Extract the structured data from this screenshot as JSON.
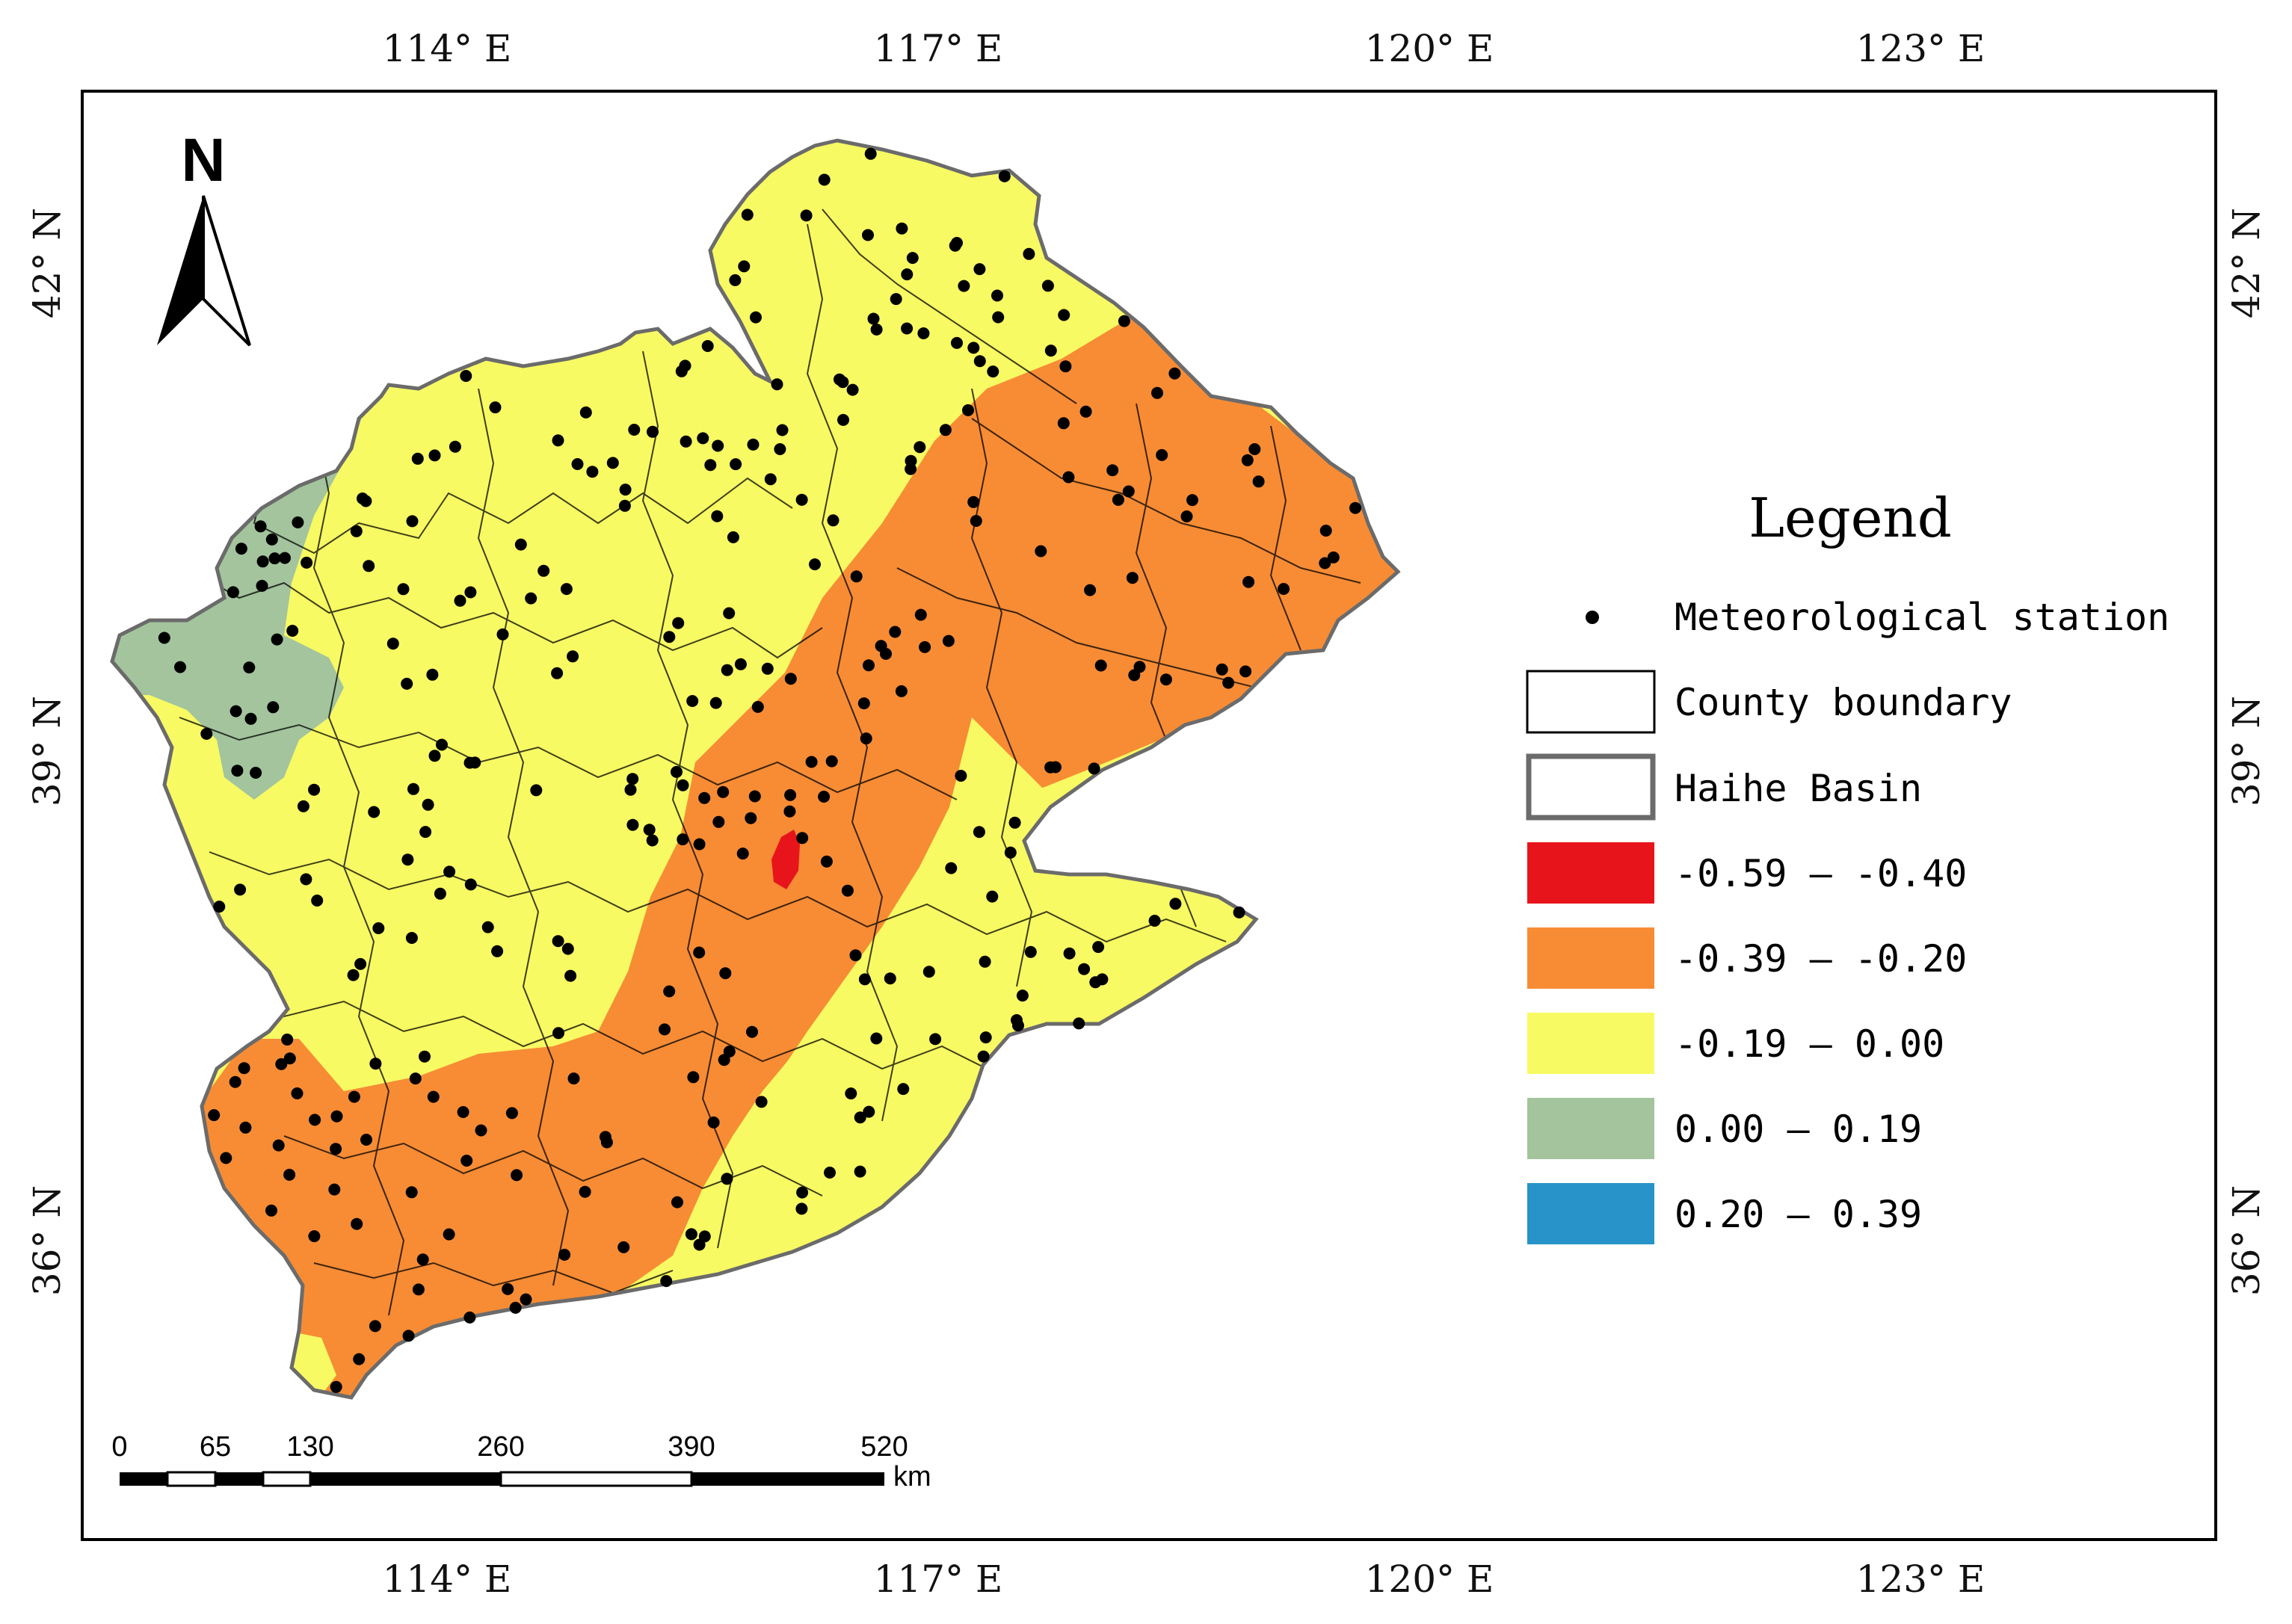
{
  "map": {
    "north_label": "N",
    "lon_ticks": [
      "114° E",
      "117° E",
      "120° E",
      "123° E"
    ],
    "lat_ticks": [
      "42° N",
      "39° N",
      "36° N"
    ],
    "scale_bar": {
      "labels": [
        "0",
        "65",
        "130",
        "260",
        "390",
        "520"
      ],
      "unit": "km"
    }
  },
  "legend": {
    "title": "Legend",
    "items": [
      {
        "label": "Meteorological station",
        "kind": "point",
        "color": "#000000"
      },
      {
        "label": "County boundary",
        "kind": "outline",
        "color": "#000000"
      },
      {
        "label": "Haihe Basin",
        "kind": "outline-thick",
        "color": "#6b6b6b"
      },
      {
        "label": "-0.59 — -0.40",
        "kind": "fill",
        "color": "#e8141b"
      },
      {
        "label": "-0.39 — -0.20",
        "kind": "fill",
        "color": "#f78c35"
      },
      {
        "label": "-0.19 — 0.00",
        "kind": "fill",
        "color": "#f8fa63"
      },
      {
        "label": "0.00 — 0.19",
        "kind": "fill",
        "color": "#a3c49d"
      },
      {
        "label": "0.20 — 0.39",
        "kind": "fill",
        "color": "#2793c9"
      }
    ]
  }
}
